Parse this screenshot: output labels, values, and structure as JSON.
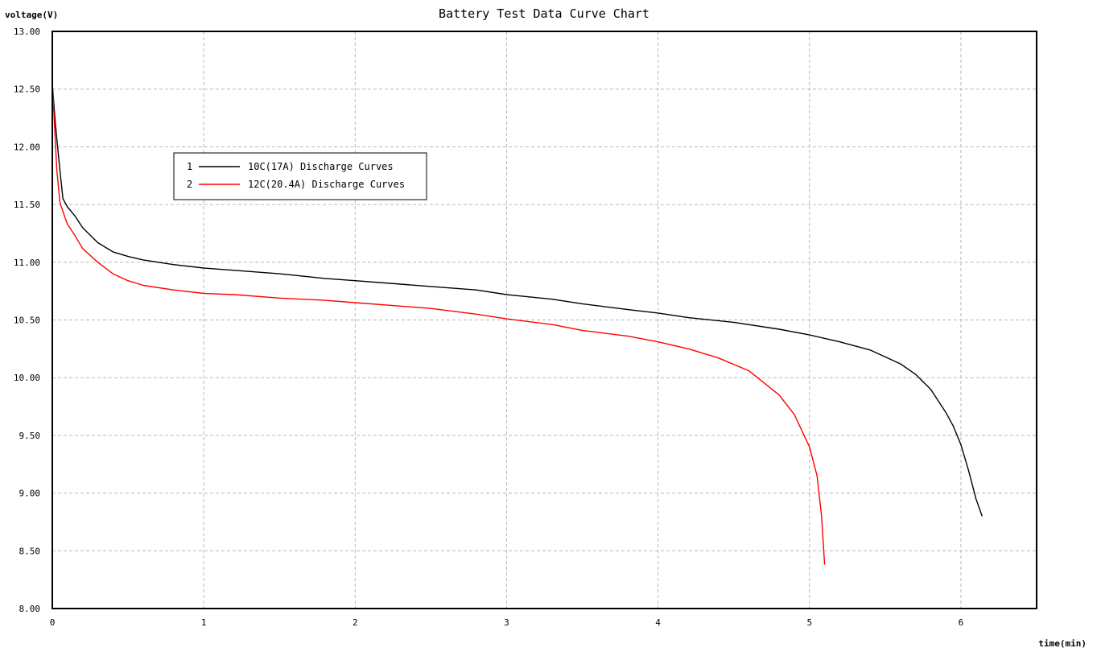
{
  "chart_data": {
    "type": "line",
    "title": "Battery Test Data Curve Chart",
    "ylabel": "voltage(V)",
    "xlabel": "time(min)",
    "xlim": [
      0,
      6.5
    ],
    "ylim": [
      8.0,
      13.0
    ],
    "x_ticks": [
      0,
      1,
      2,
      3,
      4,
      5,
      6
    ],
    "x_tick_labels": [
      "0",
      "1",
      "2",
      "3",
      "4",
      "5",
      "6"
    ],
    "y_ticks": [
      8.0,
      8.5,
      9.0,
      9.5,
      10.0,
      10.5,
      11.0,
      11.5,
      12.0,
      12.5,
      13.0
    ],
    "y_tick_labels": [
      "8.00",
      "8.50",
      "9.00",
      "9.50",
      "10.00",
      "10.50",
      "11.00",
      "11.50",
      "12.00",
      "12.50",
      "13.00"
    ],
    "grid": true,
    "legend_position": "upper-left",
    "series": [
      {
        "index": "1",
        "name": "10C(17A) Discharge Curves",
        "color": "#000000",
        "points": [
          [
            0,
            12.55
          ],
          [
            0.02,
            12.2
          ],
          [
            0.05,
            11.8
          ],
          [
            0.07,
            11.55
          ],
          [
            0.1,
            11.48
          ],
          [
            0.15,
            11.4
          ],
          [
            0.2,
            11.3
          ],
          [
            0.3,
            11.17
          ],
          [
            0.4,
            11.09
          ],
          [
            0.5,
            11.05
          ],
          [
            0.6,
            11.02
          ],
          [
            0.7,
            11.0
          ],
          [
            0.8,
            10.98
          ],
          [
            1.0,
            10.95
          ],
          [
            1.2,
            10.93
          ],
          [
            1.5,
            10.9
          ],
          [
            1.8,
            10.86
          ],
          [
            2.0,
            10.84
          ],
          [
            2.3,
            10.81
          ],
          [
            2.5,
            10.79
          ],
          [
            2.8,
            10.76
          ],
          [
            3.0,
            10.72
          ],
          [
            3.3,
            10.68
          ],
          [
            3.5,
            10.64
          ],
          [
            3.8,
            10.59
          ],
          [
            4.0,
            10.56
          ],
          [
            4.2,
            10.52
          ],
          [
            4.5,
            10.48
          ],
          [
            4.8,
            10.42
          ],
          [
            5.0,
            10.37
          ],
          [
            5.2,
            10.31
          ],
          [
            5.4,
            10.24
          ],
          [
            5.6,
            10.12
          ],
          [
            5.7,
            10.03
          ],
          [
            5.8,
            9.9
          ],
          [
            5.9,
            9.7
          ],
          [
            5.95,
            9.58
          ],
          [
            6.0,
            9.42
          ],
          [
            6.05,
            9.2
          ],
          [
            6.1,
            8.95
          ],
          [
            6.14,
            8.8
          ]
        ]
      },
      {
        "index": "2",
        "name": "12C(20.4A) Discharge Curves",
        "color": "#ff0000",
        "points": [
          [
            0,
            12.55
          ],
          [
            0.01,
            12.3
          ],
          [
            0.03,
            11.8
          ],
          [
            0.05,
            11.52
          ],
          [
            0.08,
            11.4
          ],
          [
            0.1,
            11.33
          ],
          [
            0.15,
            11.23
          ],
          [
            0.2,
            11.12
          ],
          [
            0.3,
            11.0
          ],
          [
            0.4,
            10.9
          ],
          [
            0.5,
            10.84
          ],
          [
            0.6,
            10.8
          ],
          [
            0.8,
            10.76
          ],
          [
            1.0,
            10.73
          ],
          [
            1.2,
            10.72
          ],
          [
            1.5,
            10.69
          ],
          [
            1.8,
            10.67
          ],
          [
            2.0,
            10.65
          ],
          [
            2.3,
            10.62
          ],
          [
            2.5,
            10.6
          ],
          [
            2.8,
            10.55
          ],
          [
            3.0,
            10.51
          ],
          [
            3.3,
            10.46
          ],
          [
            3.5,
            10.41
          ],
          [
            3.8,
            10.36
          ],
          [
            4.0,
            10.31
          ],
          [
            4.2,
            10.25
          ],
          [
            4.4,
            10.17
          ],
          [
            4.6,
            10.06
          ],
          [
            4.8,
            9.85
          ],
          [
            4.9,
            9.68
          ],
          [
            5.0,
            9.4
          ],
          [
            5.05,
            9.15
          ],
          [
            5.08,
            8.8
          ],
          [
            5.1,
            8.38
          ]
        ]
      }
    ]
  }
}
